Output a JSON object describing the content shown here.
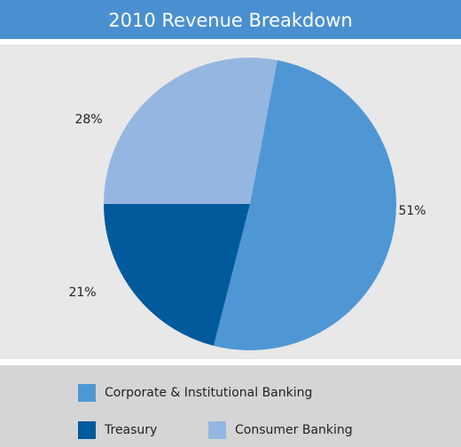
{
  "chart_data": {
    "type": "pie",
    "title": "2010 Revenue Breakdown",
    "categories": [
      "Corporate & Institutional Banking",
      "Treasury",
      "Consumer Banking"
    ],
    "values": [
      51,
      21,
      28
    ],
    "value_labels": [
      "51%",
      "21%",
      "28%"
    ],
    "colors": [
      "#4f97d4",
      "#005a9c",
      "#95b6e1"
    ]
  }
}
